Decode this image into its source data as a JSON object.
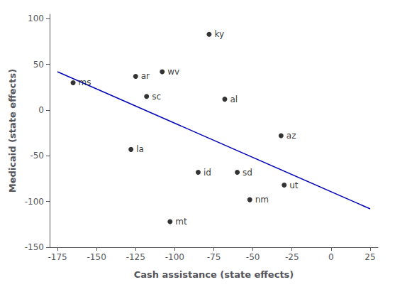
{
  "chart_data": {
    "type": "scatter",
    "xlabel": "Cash assistance (state effects)",
    "ylabel": "Medicaid (state effects)",
    "series": [
      {
        "type": "scatter",
        "color": "#000000",
        "x": [
          -165,
          -125,
          -108,
          -118,
          -78,
          -68,
          -128,
          -85,
          -60,
          -32,
          -30,
          -52,
          -103
        ],
        "values": [
          30,
          37,
          42,
          15,
          83,
          12,
          -43,
          -68,
          -68,
          -28,
          -82,
          -98,
          -122
        ],
        "labels": [
          "ms",
          "ar",
          "wv",
          "sc",
          "ky",
          "al",
          "la",
          "id",
          "sd",
          "az",
          "ut",
          "nm",
          "mt"
        ]
      },
      {
        "type": "line",
        "color": "#0000BB",
        "x": [
          -175,
          25
        ],
        "values": [
          42,
          -108
        ]
      }
    ],
    "xlim": [
      -180,
      30
    ],
    "ylim": [
      -150,
      105
    ],
    "xticks": [
      -175,
      -150,
      -125,
      -100,
      -75,
      -50,
      -25,
      0,
      25
    ],
    "yticks": [
      -150,
      -100,
      -50,
      0,
      50,
      100
    ],
    "grid": false
  }
}
